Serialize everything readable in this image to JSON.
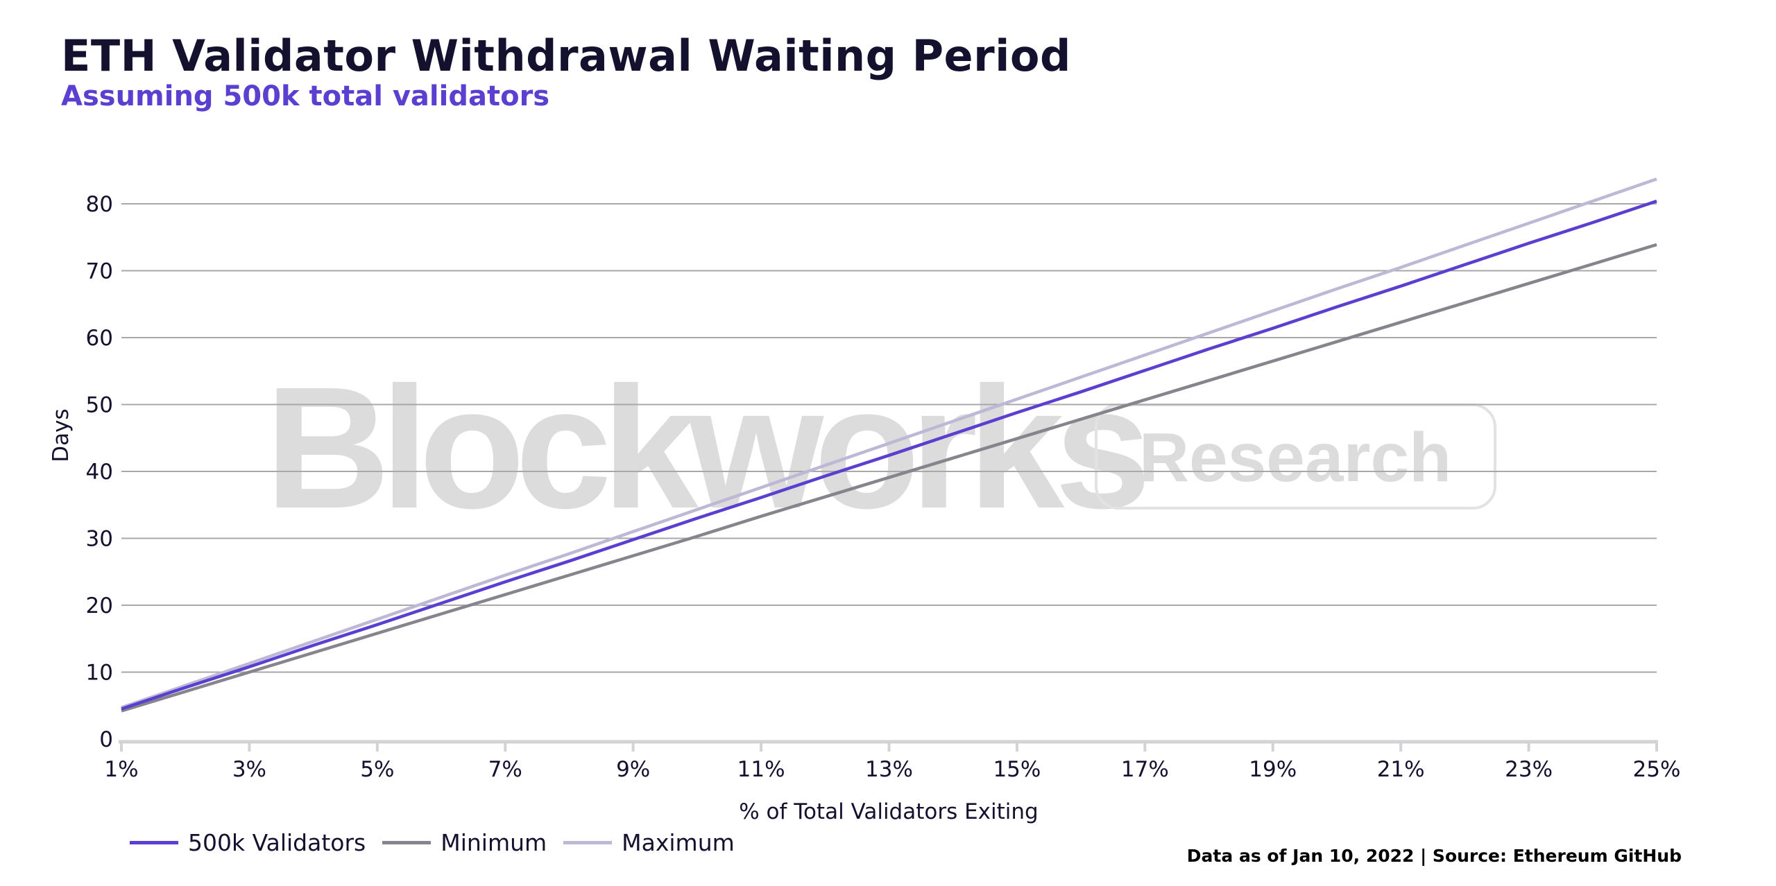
{
  "header": {
    "title": "ETH Validator Withdrawal Waiting Period",
    "subtitle": "Assuming 500k total validators"
  },
  "watermark": {
    "brand": "Blockworks",
    "tag": "Research"
  },
  "legend": {
    "items": [
      {
        "label": "500k Validators",
        "color": "#5a3fd0"
      },
      {
        "label": "Minimum",
        "color": "#86848c"
      },
      {
        "label": "Maximum",
        "color": "#bcb8d6"
      }
    ]
  },
  "footer": {
    "note": "Data as of Jan 10, 2022 | Source: Ethereum GitHub"
  },
  "colors": {
    "title": "#14112e",
    "subtitle": "#5a3fd0",
    "gridline": "#a8a8ab",
    "axis": "#d3d3d6"
  },
  "chart_data": {
    "type": "line",
    "title": "ETH Validator Withdrawal Waiting Period",
    "subtitle": "Assuming 500k total validators",
    "xlabel": "% of Total Validators Exiting",
    "ylabel": "Days",
    "x": [
      1,
      2,
      3,
      4,
      5,
      6,
      7,
      8,
      9,
      10,
      11,
      12,
      13,
      14,
      15,
      16,
      17,
      18,
      19,
      20,
      21,
      22,
      23,
      24,
      25
    ],
    "x_tick_labels": [
      "1%",
      "3%",
      "5%",
      "7%",
      "9%",
      "11%",
      "13%",
      "15%",
      "17%",
      "19%",
      "21%",
      "23%",
      "25%"
    ],
    "y_tick_labels": [
      "0",
      "10",
      "20",
      "30",
      "40",
      "50",
      "60",
      "70",
      "80"
    ],
    "xlim": [
      1,
      25
    ],
    "ylim": [
      0,
      80
    ],
    "grid": true,
    "legend_position": "bottom-left",
    "series": [
      {
        "name": "500k Validators",
        "color": "#5a3fd0",
        "values": [
          4.5,
          7.7,
          10.8,
          14.0,
          17.1,
          20.3,
          23.5,
          26.6,
          29.8,
          33.0,
          36.1,
          39.3,
          42.4,
          45.6,
          48.8,
          51.9,
          55.1,
          58.3,
          61.4,
          64.6,
          67.7,
          70.9,
          74.1,
          77.2,
          80.4
        ]
      },
      {
        "name": "Minimum",
        "color": "#86848c",
        "values": [
          4.2,
          7.1,
          10.0,
          12.9,
          15.8,
          18.7,
          21.6,
          24.5,
          27.4,
          30.3,
          33.3,
          36.2,
          39.1,
          42.0,
          44.9,
          47.8,
          50.7,
          53.6,
          56.5,
          59.4,
          62.3,
          65.2,
          68.1,
          71.0,
          73.9
        ]
      },
      {
        "name": "Maximum",
        "color": "#bcb8d6",
        "values": [
          4.7,
          8.0,
          11.3,
          14.6,
          17.9,
          21.2,
          24.5,
          27.7,
          31.0,
          34.3,
          37.6,
          40.9,
          44.2,
          47.5,
          50.8,
          54.1,
          57.4,
          60.7,
          64.0,
          67.3,
          70.5,
          73.8,
          77.1,
          80.4,
          83.7
        ]
      }
    ]
  }
}
